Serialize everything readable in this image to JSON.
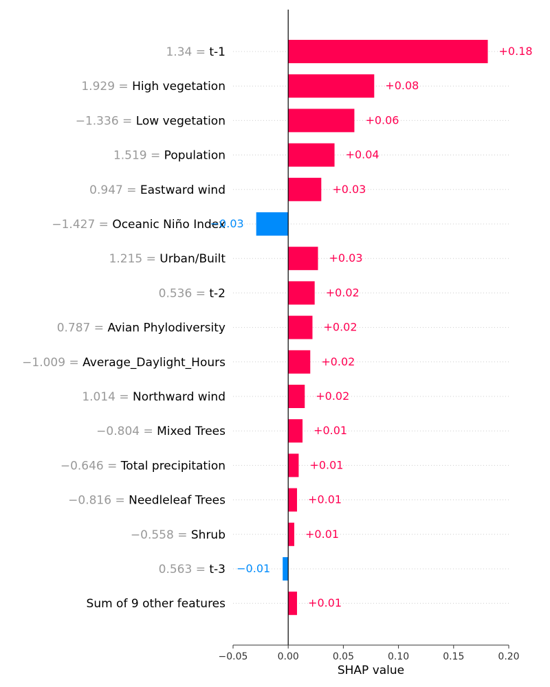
{
  "chart_data": {
    "type": "bar",
    "orientation": "horizontal",
    "xlabel": "SHAP value",
    "xlim": [
      -0.05,
      0.2
    ],
    "xticks": [
      -0.05,
      0.0,
      0.05,
      0.1,
      0.15,
      0.2
    ],
    "xtick_labels": [
      "−0.05",
      "0.00",
      "0.05",
      "0.10",
      "0.15",
      "0.20"
    ],
    "grid": "horizontal dotted row guides",
    "colors": {
      "positive": "#ff0051",
      "negative": "#008bfb",
      "feature_value": "#999999",
      "feature_name": "#000000"
    },
    "features": [
      {
        "value": "1.34",
        "name": "t-1",
        "shap": 0.181,
        "label": "+0.18"
      },
      {
        "value": "1.929",
        "name": "High vegetation",
        "shap": 0.078,
        "label": "+0.08"
      },
      {
        "value": "−1.336",
        "name": "Low vegetation",
        "shap": 0.06,
        "label": "+0.06"
      },
      {
        "value": "1.519",
        "name": "Population",
        "shap": 0.042,
        "label": "+0.04"
      },
      {
        "value": "0.947",
        "name": "Eastward wind",
        "shap": 0.03,
        "label": "+0.03"
      },
      {
        "value": "−1.427",
        "name": "Oceanic Niño Index",
        "shap": -0.029,
        "label": "−0.03"
      },
      {
        "value": "1.215",
        "name": "Urban/Built",
        "shap": 0.027,
        "label": "+0.03"
      },
      {
        "value": "0.536",
        "name": "t-2",
        "shap": 0.024,
        "label": "+0.02"
      },
      {
        "value": "0.787",
        "name": "Avian Phylodiversity",
        "shap": 0.022,
        "label": "+0.02"
      },
      {
        "value": "−1.009",
        "name": "Average_Daylight_Hours",
        "shap": 0.02,
        "label": "+0.02"
      },
      {
        "value": "1.014",
        "name": "Northward wind",
        "shap": 0.015,
        "label": "+0.02"
      },
      {
        "value": "−0.804",
        "name": "Mixed Trees",
        "shap": 0.013,
        "label": "+0.01"
      },
      {
        "value": "−0.646",
        "name": "Total precipitation",
        "shap": 0.0095,
        "label": "+0.01"
      },
      {
        "value": "−0.816",
        "name": "Needleleaf Trees",
        "shap": 0.008,
        "label": "+0.01"
      },
      {
        "value": "−0.558",
        "name": "Shrub",
        "shap": 0.0055,
        "label": "+0.01"
      },
      {
        "value": "0.563",
        "name": "t-3",
        "shap": -0.005,
        "label": "−0.01"
      },
      {
        "value": "",
        "name": "Sum of 9 other features",
        "shap": 0.008,
        "label": "+0.01"
      }
    ]
  }
}
